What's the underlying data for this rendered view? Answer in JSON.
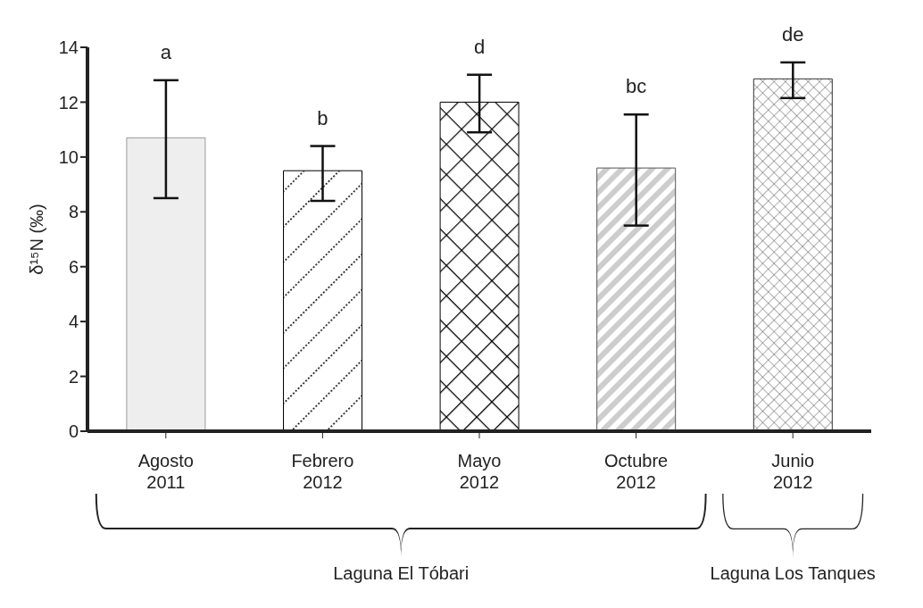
{
  "chart_data": {
    "type": "bar",
    "ylabel": "δ¹⁵N (‰)",
    "categories": [
      "Agosto 2011",
      "Febrero 2012",
      "Mayo 2012",
      "Octubre 2012",
      "Junio 2012"
    ],
    "values": [
      10.7,
      9.5,
      12.0,
      9.6,
      12.85
    ],
    "errors": [
      [
        8.5,
        12.8
      ],
      [
        8.4,
        10.4
      ],
      [
        10.9,
        13.0
      ],
      [
        7.5,
        11.55
      ],
      [
        12.15,
        13.45
      ]
    ],
    "colors": [
      "#eeeeee",
      "#000000",
      "#000000",
      "#555555",
      "#333333"
    ],
    "ylim": [
      0,
      14
    ],
    "yticks": [
      0,
      2,
      4,
      6,
      8,
      10,
      12,
      14
    ],
    "grid": false,
    "legend": false,
    "annotations": [
      "a",
      "b",
      "d",
      "bc",
      "de",
      "Laguna El Tóbari",
      "Laguna Los Tanques"
    ]
  }
}
